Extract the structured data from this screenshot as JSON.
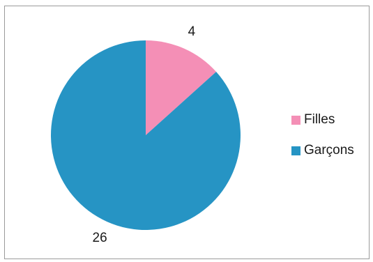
{
  "chart_data": {
    "type": "pie",
    "categories": [
      "Filles",
      "Garçons"
    ],
    "values": [
      4,
      26
    ],
    "colors": [
      "#f48fb6",
      "#2694c4"
    ],
    "data_labels": [
      "4",
      "26"
    ],
    "legend_position": "right"
  }
}
